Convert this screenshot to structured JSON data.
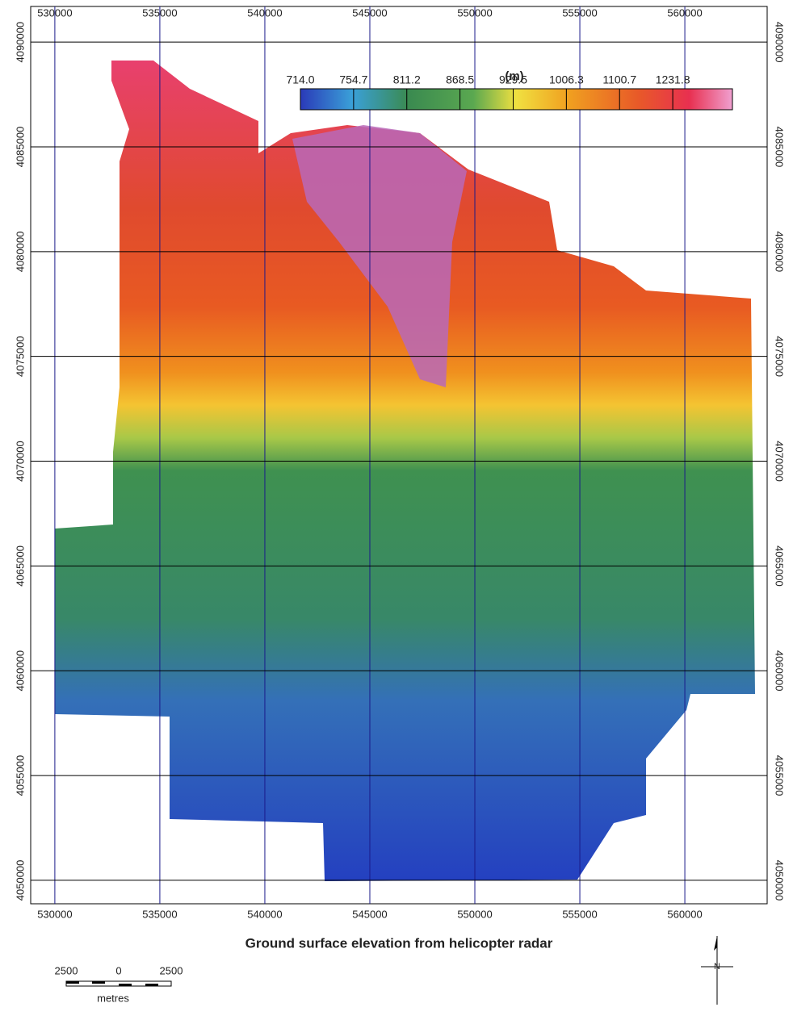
{
  "map": {
    "title": "Ground surface elevation from helicopter radar",
    "xlim": [
      528850,
      563920
    ],
    "ylim": [
      4048880,
      4091700
    ],
    "xticks": [
      530000,
      535000,
      540000,
      545000,
      550000,
      555000,
      560000
    ],
    "yticks": [
      4050000,
      4055000,
      4060000,
      4065000,
      4070000,
      4075000,
      4080000,
      4085000,
      4090000
    ],
    "legend": {
      "unit": "(m)",
      "labels": [
        {
          "value": 714,
          "label": "714.0"
        },
        754.7,
        811.2,
        868.5,
        929.5,
        1006.3,
        1100.7,
        1231.8
      ]
    },
    "scale_bar": {
      "labels": [
        2500,
        0,
        2500
      ],
      "unit": "metres"
    },
    "north_label": "N"
  }
}
